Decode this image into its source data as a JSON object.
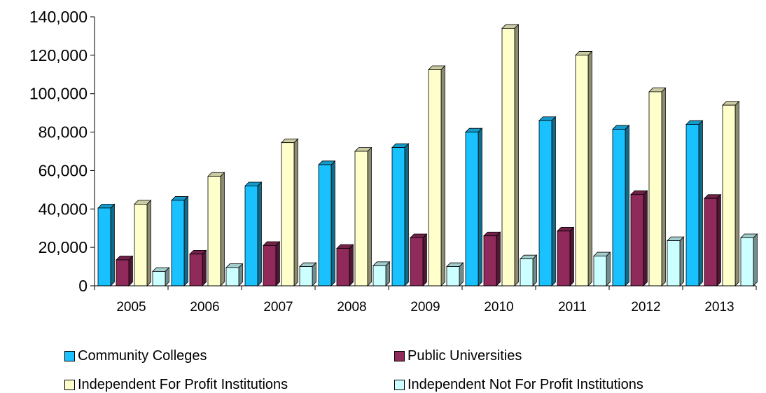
{
  "chart_data": {
    "type": "bar",
    "categories": [
      "2005",
      "2006",
      "2007",
      "2008",
      "2009",
      "2010",
      "2011",
      "2012",
      "2013"
    ],
    "series": [
      {
        "name": "Community Colleges",
        "color": "#19C2FF",
        "values": [
          40500,
          44500,
          52000,
          63000,
          72000,
          80000,
          86000,
          81500,
          84000
        ]
      },
      {
        "name": "Public Universities",
        "color": "#8F2A5A",
        "values": [
          13500,
          16500,
          21000,
          19500,
          25000,
          26000,
          28500,
          47500,
          45500
        ]
      },
      {
        "name": "Independent For Profit Institutions",
        "color": "#FFFFCC",
        "values": [
          42500,
          57000,
          74500,
          70000,
          112500,
          134000,
          120000,
          101000,
          94000
        ]
      },
      {
        "name": "Independent Not For Profit Institutions",
        "color": "#CCFFFF",
        "values": [
          7500,
          9500,
          10000,
          10500,
          10000,
          14000,
          15500,
          23500,
          25000
        ]
      }
    ],
    "ylim": [
      0,
      140000
    ],
    "yticks": [
      "0",
      "20,000",
      "40,000",
      "60,000",
      "80,000",
      "100,000",
      "120,000",
      "140,000"
    ],
    "grid": false,
    "legend_position": "bottom"
  }
}
